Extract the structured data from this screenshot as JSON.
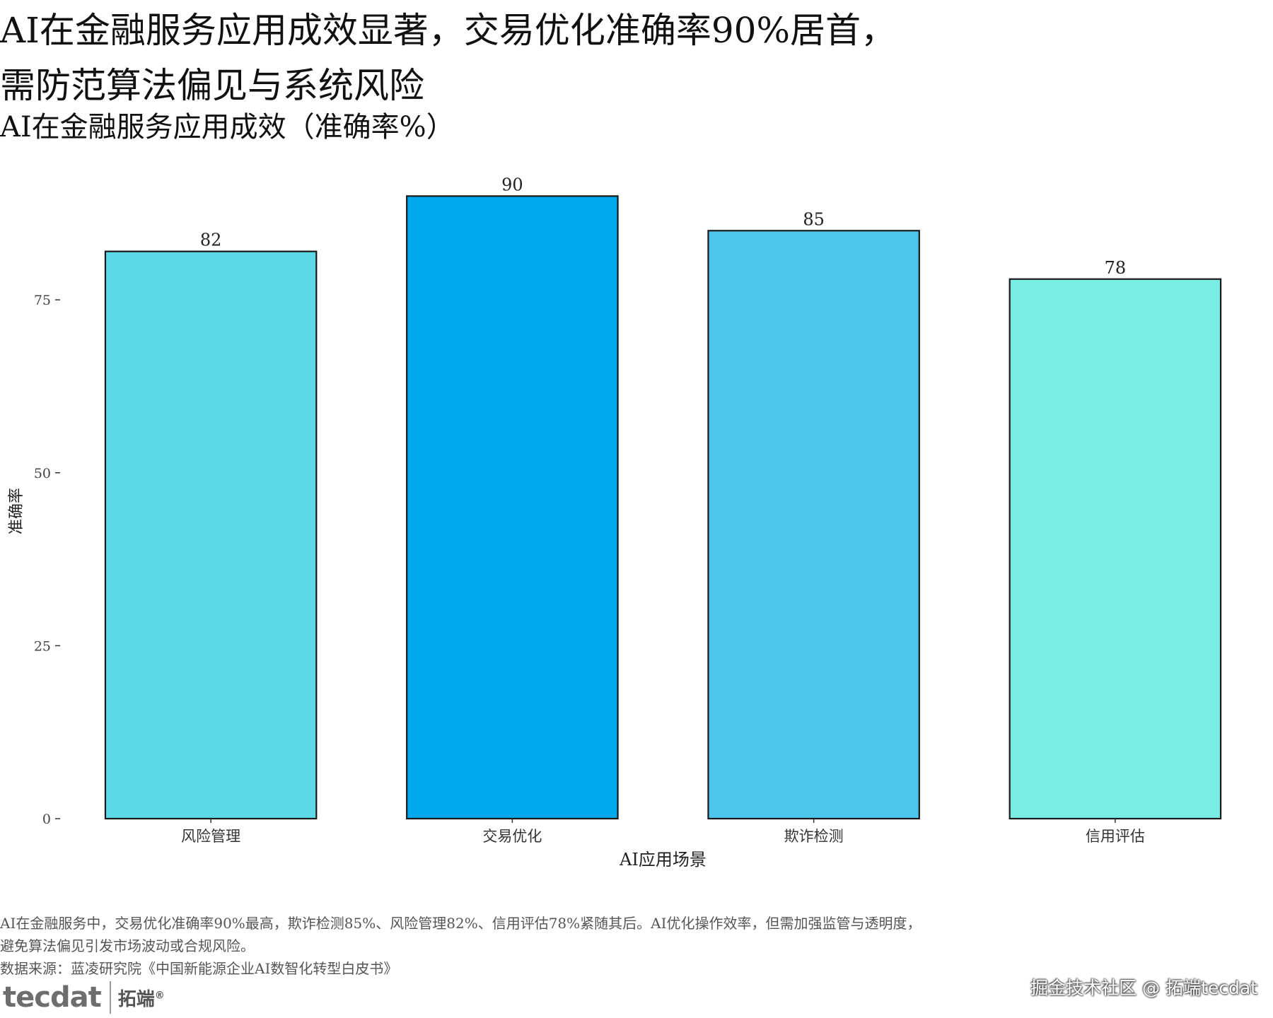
{
  "header": {
    "title_line1": "AI在金融服务应用成效显著，交易优化准确率90%居首，",
    "title_line2": "需防范算法偏见与系统风险",
    "subtitle": "AI在金融服务应用成效（准确率%）"
  },
  "chart_data": {
    "type": "bar",
    "categories": [
      "风险管理",
      "交易优化",
      "欺诈检测",
      "信用评估"
    ],
    "values": [
      82,
      90,
      85,
      78
    ],
    "colors": [
      "#5dd8e8",
      "#00a8ec",
      "#4dc6ec",
      "#77ede3"
    ],
    "bar_outline": "#1a1a1a",
    "xlabel": "AI应用场景",
    "ylabel": "准确率",
    "ylim": [
      0,
      93
    ],
    "yticks": [
      0,
      25,
      50,
      75
    ],
    "data_labels": [
      "82",
      "90",
      "85",
      "78"
    ],
    "grid": false
  },
  "caption": {
    "line1": "AI在金融服务中，交易优化准确率90%最高，欺诈检测85%、风险管理82%、信用评估78%紧随其后。AI优化操作效率，但需加强监管与透明度，",
    "line2": "避免算法偏见引发市场波动或合规风险。",
    "source": "数据来源：蓝凌研究院《中国新能源企业AI数智化转型白皮书》"
  },
  "branding": {
    "logo_mark": "tecdat",
    "logo_cn": "拓端",
    "logo_reg": "®",
    "watermark": "掘金技术社区 @ 拓端tecdat"
  }
}
